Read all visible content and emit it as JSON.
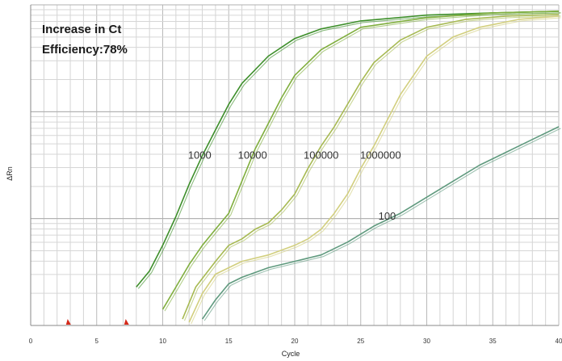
{
  "chart_data": {
    "type": "line",
    "annotations": [
      "Increase in Ct",
      "Efficiency:78%"
    ],
    "xlabel": "Cycle",
    "ylabel": "ΔRn",
    "xlim": [
      0,
      40
    ],
    "x_ticks": [
      0,
      5,
      10,
      15,
      20,
      25,
      30,
      35,
      40
    ],
    "y_scale": "log",
    "grid": true,
    "threshold_markers": [
      2.8,
      7.2
    ],
    "colors": {
      "1000": "#3d8f2a",
      "10000": "#7fae3c",
      "100000": "#a7ba52",
      "1000000": "#d2cf7e",
      "100": "#5f9a7e",
      "marker": "#d42a1a"
    },
    "series": [
      {
        "name": "1000",
        "label_at": [
          12.8,
          0.52
        ],
        "points": [
          [
            8,
            0.12
          ],
          [
            9,
            0.17
          ],
          [
            10,
            0.25
          ],
          [
            11,
            0.34
          ],
          [
            12,
            0.44
          ],
          [
            13,
            0.53
          ],
          [
            14,
            0.61
          ],
          [
            15,
            0.69
          ],
          [
            16,
            0.755
          ],
          [
            18,
            0.84
          ],
          [
            20,
            0.895
          ],
          [
            22,
            0.925
          ],
          [
            25,
            0.95
          ],
          [
            30,
            0.968
          ],
          [
            35,
            0.975
          ],
          [
            40,
            0.98
          ]
        ]
      },
      {
        "name": "10000",
        "label_at": [
          16.8,
          0.52
        ],
        "points": [
          [
            10,
            0.05
          ],
          [
            11,
            0.12
          ],
          [
            12,
            0.19
          ],
          [
            13,
            0.25
          ],
          [
            14,
            0.3
          ],
          [
            15,
            0.35
          ],
          [
            16,
            0.45
          ],
          [
            17,
            0.55
          ],
          [
            18,
            0.63
          ],
          [
            19,
            0.71
          ],
          [
            20,
            0.78
          ],
          [
            22,
            0.86
          ],
          [
            25,
            0.93
          ],
          [
            30,
            0.96
          ],
          [
            35,
            0.975
          ],
          [
            40,
            0.98
          ]
        ]
      },
      {
        "name": "100000",
        "label_at": [
          22.0,
          0.52
        ],
        "points": [
          [
            11.5,
            0.02
          ],
          [
            12.5,
            0.12
          ],
          [
            14,
            0.2
          ],
          [
            15,
            0.25
          ],
          [
            16,
            0.27
          ],
          [
            17,
            0.3
          ],
          [
            18,
            0.32
          ],
          [
            19,
            0.36
          ],
          [
            20,
            0.41
          ],
          [
            21,
            0.49
          ],
          [
            22,
            0.56
          ],
          [
            23,
            0.62
          ],
          [
            24,
            0.69
          ],
          [
            25,
            0.76
          ],
          [
            26,
            0.82
          ],
          [
            28,
            0.89
          ],
          [
            30,
            0.93
          ],
          [
            33,
            0.955
          ],
          [
            36,
            0.965
          ],
          [
            40,
            0.97
          ]
        ]
      },
      {
        "name": "1000000",
        "label_at": [
          26.5,
          0.52
        ],
        "points": [
          [
            12,
            0.01
          ],
          [
            13,
            0.1
          ],
          [
            14,
            0.16
          ],
          [
            15,
            0.18
          ],
          [
            16,
            0.2
          ],
          [
            18,
            0.22
          ],
          [
            20,
            0.25
          ],
          [
            21,
            0.27
          ],
          [
            22,
            0.3
          ],
          [
            23,
            0.35
          ],
          [
            24,
            0.41
          ],
          [
            25,
            0.49
          ],
          [
            26,
            0.56
          ],
          [
            27,
            0.64
          ],
          [
            28,
            0.72
          ],
          [
            29,
            0.78
          ],
          [
            30,
            0.84
          ],
          [
            32,
            0.9
          ],
          [
            34,
            0.93
          ],
          [
            37,
            0.955
          ],
          [
            40,
            0.965
          ]
        ]
      },
      {
        "name": "100",
        "label_at": [
          27.0,
          0.33
        ],
        "points": [
          [
            13,
            0.02
          ],
          [
            14,
            0.08
          ],
          [
            15,
            0.13
          ],
          [
            16,
            0.15
          ],
          [
            18,
            0.18
          ],
          [
            20,
            0.2
          ],
          [
            22,
            0.22
          ],
          [
            24,
            0.26
          ],
          [
            26,
            0.31
          ],
          [
            28,
            0.35
          ],
          [
            30,
            0.4
          ],
          [
            32,
            0.45
          ],
          [
            34,
            0.5
          ],
          [
            36,
            0.54
          ],
          [
            38,
            0.58
          ],
          [
            40,
            0.62
          ]
        ]
      }
    ]
  }
}
